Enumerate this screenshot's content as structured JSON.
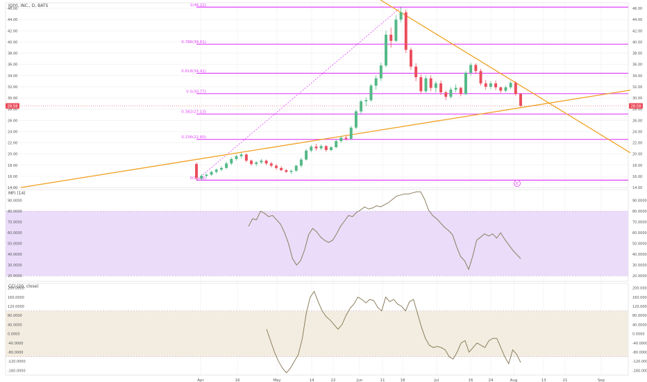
{
  "symbol": "IQIYI, INC., D, BATS",
  "colors": {
    "up": "#53b987",
    "down": "#eb4d5c",
    "fib": "#e040fb",
    "trend": "#f0a020",
    "mfi_band": "#ebdcfa",
    "cci_band": "#f3ede1",
    "indicator_line": "#8b7d5b",
    "price_label_bg": "#eb4d5c",
    "grid": "#eeeeee",
    "text": "#555555"
  },
  "price_axis_labels": [
    "46.00",
    "44.00",
    "42.00",
    "40.00",
    "38.00",
    "36.00",
    "34.00",
    "32.00",
    "30.00",
    "28.00",
    "26.00",
    "24.00",
    "22.00",
    "20.00",
    "18.00",
    "16.00",
    "14.00"
  ],
  "current_price_label": "28.58",
  "fib_labels": [
    "1(46.22)",
    "0.786(39.61)",
    "0.618(34.41)",
    "0.5(30.77)",
    "0.382(27.13)",
    "0.236(22.60)",
    "0(15.32)"
  ],
  "event_marker": "E",
  "mfi": {
    "title": "MFI (14)",
    "axis_labels": [
      "90.0000",
      "80.0000",
      "70.0000",
      "60.0000",
      "50.0000",
      "40.0000",
      "30.0000",
      "20.0000"
    ]
  },
  "cci": {
    "title": "CCI (20, close)",
    "axis_labels": [
      "200.0000",
      "160.0000",
      "120.0000",
      "80.0000",
      "40.0000",
      "0.0000",
      "-40.0000",
      "-80.0000",
      "-120.0000",
      "-160.0000"
    ]
  },
  "x_axis_labels": [
    "Apr",
    "16",
    "May",
    "14",
    "22",
    "Jun",
    "11",
    "18",
    "Jul",
    "16",
    "24",
    "Aug",
    "13",
    "21",
    "Sep"
  ],
  "chart_data": [
    {
      "type": "candlestick",
      "title": "IQIYI, INC., D, BATS",
      "ylim": [
        14,
        47
      ],
      "candles": [
        [
          18.2,
          18.5,
          15.3,
          15.7
        ],
        [
          15.6,
          16.4,
          15.3,
          16.1
        ],
        [
          16.1,
          16.5,
          15.8,
          16.3
        ],
        [
          16.3,
          17.0,
          16.1,
          16.8
        ],
        [
          16.8,
          17.4,
          16.5,
          17.2
        ],
        [
          17.2,
          17.8,
          16.9,
          17.5
        ],
        [
          17.5,
          18.6,
          17.3,
          18.3
        ],
        [
          18.3,
          19.4,
          18.0,
          19.1
        ],
        [
          19.1,
          19.9,
          18.8,
          19.6
        ],
        [
          19.6,
          20.2,
          19.2,
          19.9
        ],
        [
          19.9,
          20.1,
          18.5,
          18.8
        ],
        [
          18.8,
          19.0,
          17.9,
          18.2
        ],
        [
          18.2,
          18.7,
          17.8,
          18.5
        ],
        [
          18.5,
          19.1,
          18.2,
          18.8
        ],
        [
          18.8,
          19.0,
          18.0,
          18.3
        ],
        [
          18.3,
          18.6,
          17.6,
          17.9
        ],
        [
          17.9,
          18.2,
          17.2,
          17.5
        ],
        [
          17.5,
          17.8,
          16.9,
          17.1
        ],
        [
          17.1,
          17.3,
          16.6,
          16.8
        ],
        [
          16.8,
          17.2,
          16.4,
          17.0
        ],
        [
          17.0,
          18.1,
          16.8,
          17.9
        ],
        [
          17.9,
          19.3,
          17.6,
          19.0
        ],
        [
          19.0,
          20.9,
          18.8,
          20.6
        ],
        [
          20.6,
          21.6,
          20.3,
          21.3
        ],
        [
          21.3,
          21.8,
          20.6,
          21.0
        ],
        [
          21.0,
          21.7,
          20.7,
          21.4
        ],
        [
          21.4,
          21.6,
          20.4,
          20.7
        ],
        [
          20.7,
          21.4,
          20.5,
          21.2
        ],
        [
          21.2,
          22.6,
          21.0,
          22.3
        ],
        [
          22.3,
          23.2,
          22.0,
          22.9
        ],
        [
          22.9,
          23.3,
          22.4,
          22.7
        ],
        [
          22.7,
          25.0,
          22.5,
          24.7
        ],
        [
          24.7,
          27.9,
          24.4,
          27.6
        ],
        [
          27.6,
          29.7,
          27.2,
          29.4
        ],
        [
          29.4,
          30.1,
          28.5,
          29.6
        ],
        [
          29.6,
          32.5,
          29.3,
          32.2
        ],
        [
          32.2,
          34.0,
          31.5,
          33.5
        ],
        [
          33.5,
          36.3,
          33.0,
          35.8
        ],
        [
          35.8,
          42.0,
          35.5,
          41.3
        ],
        [
          41.3,
          42.6,
          39.0,
          40.2
        ],
        [
          40.2,
          44.8,
          40.0,
          44.0
        ],
        [
          44.0,
          46.2,
          43.5,
          45.3
        ],
        [
          45.3,
          45.8,
          38.0,
          38.6
        ],
        [
          38.6,
          39.0,
          35.0,
          35.6
        ],
        [
          35.6,
          36.2,
          33.0,
          33.7
        ],
        [
          33.7,
          34.2,
          30.8,
          31.2
        ],
        [
          31.2,
          34.0,
          30.9,
          33.5
        ],
        [
          33.5,
          34.0,
          31.2,
          31.8
        ],
        [
          31.8,
          33.0,
          31.0,
          32.6
        ],
        [
          32.6,
          33.1,
          30.5,
          31.0
        ],
        [
          31.0,
          31.3,
          29.6,
          30.2
        ],
        [
          30.2,
          31.9,
          29.9,
          31.5
        ],
        [
          31.5,
          32.4,
          31.0,
          31.8
        ],
        [
          31.8,
          32.0,
          30.3,
          30.7
        ],
        [
          30.7,
          34.8,
          30.5,
          34.5
        ],
        [
          34.5,
          36.3,
          34.0,
          35.9
        ],
        [
          35.9,
          36.2,
          34.3,
          34.8
        ],
        [
          34.8,
          35.2,
          32.2,
          32.6
        ],
        [
          32.6,
          33.2,
          31.5,
          32.0
        ],
        [
          32.0,
          33.0,
          31.6,
          32.6
        ],
        [
          32.6,
          33.1,
          31.4,
          31.9
        ],
        [
          31.9,
          32.0,
          30.9,
          31.3
        ],
        [
          31.3,
          32.2,
          31.0,
          31.9
        ],
        [
          31.9,
          33.0,
          31.6,
          32.7
        ],
        [
          32.7,
          33.0,
          30.4,
          30.7
        ],
        [
          30.7,
          30.9,
          28.4,
          28.58
        ]
      ]
    },
    {
      "type": "line",
      "title": "MFI (14)",
      "ylim": [
        15,
        100
      ],
      "bands": [
        20,
        80
      ],
      "values": [
        66,
        73,
        72,
        80,
        78,
        75,
        76,
        72,
        68,
        60,
        50,
        36,
        30,
        34,
        44,
        58,
        64,
        61,
        56,
        53,
        51,
        53,
        59,
        66,
        71,
        76,
        75,
        79,
        81,
        84,
        82,
        83,
        85,
        84,
        86,
        88,
        91,
        94,
        95,
        96,
        96,
        97,
        98,
        98,
        91,
        81,
        76,
        73,
        69,
        65,
        62,
        58,
        47,
        38,
        34,
        26,
        38,
        53,
        56,
        59,
        57,
        59,
        55,
        60,
        54,
        49,
        44,
        40,
        36
      ]
    },
    {
      "type": "line",
      "title": "CCI (20, close)",
      "ylim": [
        -180,
        220
      ],
      "bands": [
        -100,
        100
      ],
      "values": [
        20,
        -30,
        -80,
        -120,
        -150,
        -170,
        -150,
        -120,
        -90,
        -20,
        90,
        160,
        185,
        140,
        100,
        75,
        60,
        40,
        20,
        40,
        80,
        110,
        130,
        160,
        150,
        135,
        150,
        145,
        115,
        100,
        160,
        140,
        150,
        130,
        120,
        100,
        140,
        150,
        90,
        30,
        -20,
        -50,
        -60,
        -55,
        -60,
        -70,
        -100,
        -110,
        -80,
        -40,
        -30,
        -80,
        -60,
        -40,
        -50,
        -60,
        -30,
        -20,
        -20,
        -60,
        -100,
        -130,
        -70,
        -90,
        -125
      ]
    }
  ]
}
